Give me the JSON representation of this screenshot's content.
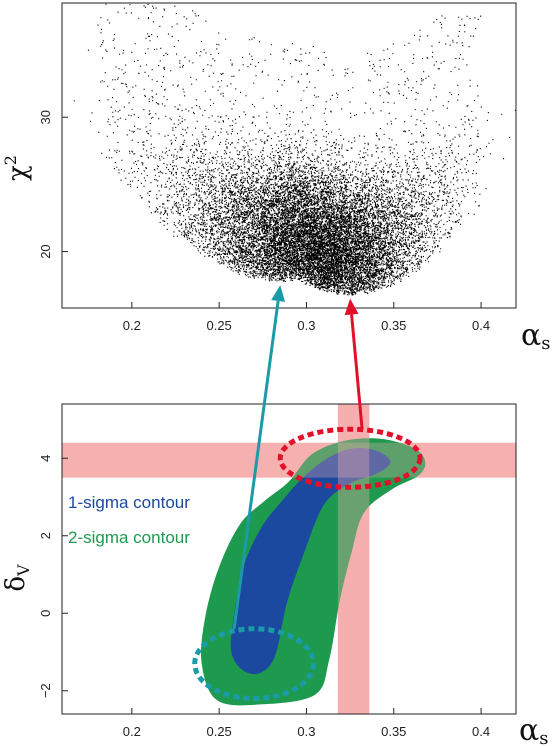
{
  "chart_data": [
    {
      "type": "scatter",
      "title": "",
      "xlabel": "α",
      "xlabel_sub": "s",
      "ylabel": "χ",
      "ylabel_sup": "2",
      "xlim": [
        0.16,
        0.42
      ],
      "ylim": [
        15.8,
        38.5
      ],
      "xticks": [
        0.2,
        0.25,
        0.3,
        0.35,
        0.4
      ],
      "xtick_labels": [
        "0.2",
        "0.25",
        "0.3",
        "0.35",
        "0.4"
      ],
      "yticks": [
        20,
        30
      ],
      "ytick_labels": [
        "20",
        "30"
      ],
      "grid": false,
      "point_color": "#000000",
      "distribution": {
        "lower_envelope_min": {
          "x": 0.285,
          "y": 17.8
        },
        "secondary_min": {
          "x": 0.325,
          "y": 16.8
        },
        "x_range_dense": [
          0.23,
          0.37
        ],
        "y_range_dense": [
          17.8,
          27
        ]
      }
    },
    {
      "type": "area",
      "title": "",
      "xlabel": "α",
      "xlabel_sub": "s",
      "ylabel": "δ",
      "ylabel_sub": "V",
      "xlim": [
        0.16,
        0.42
      ],
      "ylim": [
        -2.6,
        5.4
      ],
      "xticks": [
        0.2,
        0.25,
        0.3,
        0.35,
        0.4
      ],
      "xtick_labels": [
        "0.2",
        "0.25",
        "0.3",
        "0.35",
        "0.4"
      ],
      "yticks": [
        -2,
        0,
        2,
        4
      ],
      "ytick_labels": [
        "−2",
        "0",
        "2",
        "4"
      ],
      "grid": false,
      "series": [
        {
          "name": "1-sigma contour",
          "color": "#1c49a0"
        },
        {
          "name": "2-sigma contour",
          "color": "#1e9a4f"
        }
      ],
      "bands": {
        "horizontal_y": [
          3.5,
          4.4
        ],
        "vertical_x": [
          0.318,
          0.336
        ],
        "color": "#f6b0b0"
      },
      "highlight_ellipses": [
        {
          "cx": 0.325,
          "cy": 4.0,
          "rx": 0.04,
          "ry": 0.75,
          "color": "#e3102a"
        },
        {
          "cx": 0.27,
          "cy": -1.3,
          "rx": 0.034,
          "ry": 0.9,
          "color": "#1a9ba7"
        }
      ],
      "legend_location": "middle-left"
    }
  ],
  "colors": {
    "arrow_teal": "#1a9ba7",
    "arrow_red": "#e3102a",
    "one_sigma": "#1c49a0",
    "two_sigma": "#1e9a4f",
    "band": "#f6b0b0"
  }
}
